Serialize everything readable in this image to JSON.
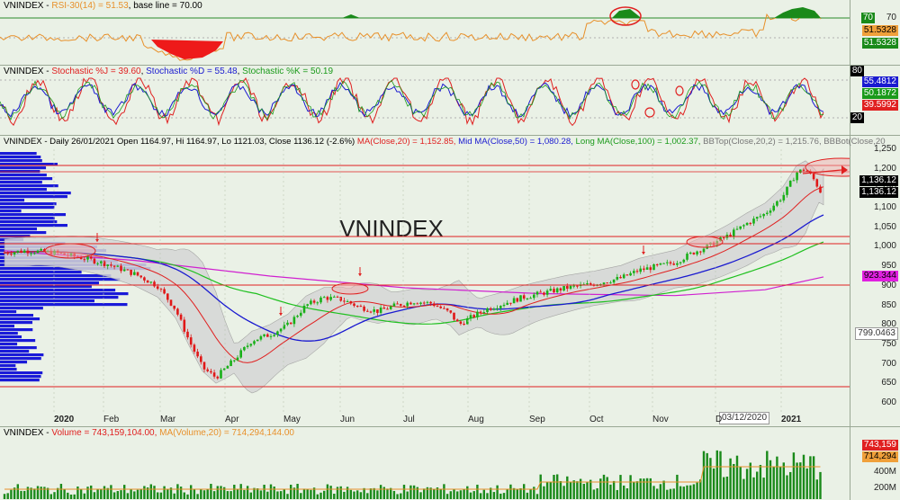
{
  "rsi": {
    "header_prefix": "VNINDEX - ",
    "label": "RSI-30(14) = 51.53",
    "base": ", base line = 70.00",
    "axis_tick": "70",
    "tag_top": "70",
    "tag_mid": "51.5328",
    "tag_bot": "51.5328"
  },
  "stoch": {
    "prefix": "VNINDEX - ",
    "j": "Stochastic %J = 39.60",
    "d": "Stochastic %D = 55.48",
    "k": "Stochastic %K = 50.19",
    "axis": [
      "80",
      "20"
    ],
    "tags": [
      "55.4812",
      "50.1872",
      "39.5992"
    ],
    "tag_80": "80",
    "tag_20": "20"
  },
  "price": {
    "prefix": "VNINDEX - Daily 26/01/2021 Open 1164.97, Hi 1164.97, Lo 1121.03, Close 1136.12 (-2.6%) ",
    "ma20": "MA(Close,20) = 1,152.85,",
    "mid": "Mid MA(Close,50) = 1,080.28,",
    "long": "Long MA(Close,100) = 1,002.37,",
    "bbtop": "BBTop(Close,20,2) = 1,215.76,",
    "bbbot": "BBBot(Close,20",
    "watermark": "VNINDEX",
    "ticks": [
      "1,250",
      "1,200",
      "1,150",
      "1,100",
      "1,050",
      "1,000",
      "950",
      "900",
      "850",
      "800",
      "750",
      "700",
      "650",
      "600"
    ],
    "tag_close1": "1,136.12",
    "tag_close2": "1,136.12",
    "tag_ma": "923.344",
    "tag_cursor": "799.0463",
    "months": [
      "2020",
      "Feb",
      "Mar",
      "Apr",
      "May",
      "Jun",
      "Jul",
      "Aug",
      "Sep",
      "Oct",
      "Nov",
      "D",
      "2021"
    ],
    "date_box": "03/12/2020"
  },
  "volume": {
    "prefix": "VNINDEX - ",
    "vol": "Volume = 743,159,104.00,",
    "ma": "MA(Volume,20) = 714,294,144.00",
    "ticks": [
      "400M",
      "200M"
    ],
    "tag1": "743,159",
    "tag2": "714,294"
  },
  "colors": {
    "ma20": "#e02020",
    "ma50": "#1a1ad0",
    "ma100": "#20c020",
    "bb": "#b0b0b0",
    "longma": "#d020d0",
    "volume": "#1a8a1a"
  }
}
